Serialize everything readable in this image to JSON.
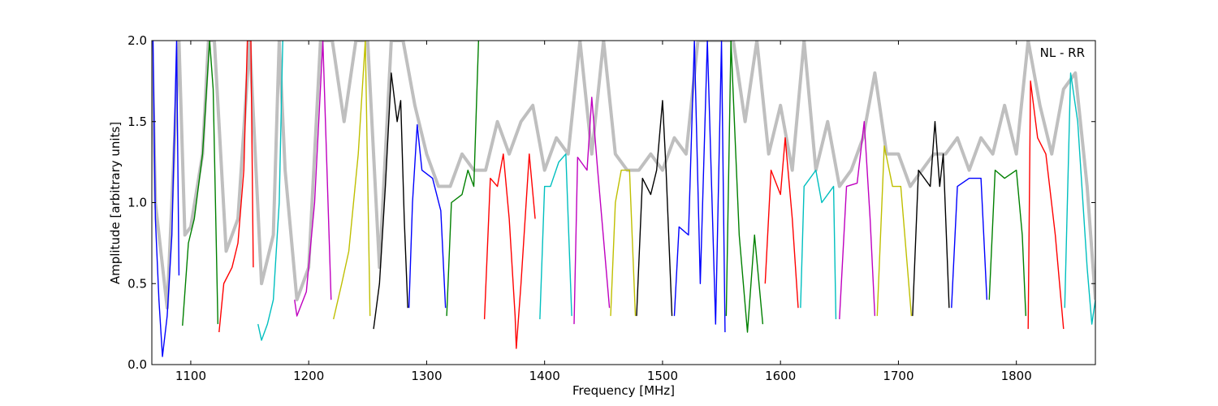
{
  "chart_data": {
    "type": "line",
    "annotation": "NL - RR",
    "x_label": "Frequency [MHz]",
    "y_label": "Amplitude [arbitrary units]",
    "xlim": [
      1067,
      1867
    ],
    "xticks": [
      1100,
      1200,
      1300,
      1400,
      1500,
      1600,
      1700,
      1800
    ],
    "ylim": [
      0,
      2
    ],
    "yticks": [
      {
        "value": 0,
        "label": "0.0"
      },
      {
        "value": 0.5,
        "label": "0.5"
      },
      {
        "value": 1,
        "label": "1.0"
      },
      {
        "value": 1.5,
        "label": "1.5"
      },
      {
        "value": 2,
        "label": "2.0"
      }
    ],
    "grid": false,
    "series": [
      {
        "color": "#bfbfbf",
        "x": [
          1067,
          1070,
          1080,
          1090,
          1095,
          1100,
          1110,
          1115,
          1120,
          1130,
          1140,
          1150,
          1160,
          1170,
          1175,
          1180,
          1190,
          1200,
          1210,
          1220,
          1230,
          1240,
          1250,
          1260,
          1270,
          1275,
          1280,
          1290,
          1300,
          1310,
          1320,
          1330,
          1340,
          1350,
          1360,
          1370,
          1380,
          1390,
          1400,
          1410,
          1420,
          1430,
          1440,
          1450,
          1460,
          1470,
          1480,
          1490,
          1500,
          1510,
          1520,
          1530,
          1540,
          1550,
          1560,
          1570,
          1580,
          1590,
          1600,
          1610,
          1620,
          1630,
          1640,
          1650,
          1660,
          1670,
          1680,
          1690,
          1700,
          1710,
          1720,
          1730,
          1740,
          1750,
          1760,
          1770,
          1780,
          1790,
          1800,
          1810,
          1820,
          1830,
          1840,
          1850,
          1860,
          1867
        ],
        "values": [
          2.0,
          1.0,
          0.35,
          2.0,
          0.8,
          0.85,
          1.3,
          2.0,
          2.0,
          0.7,
          0.9,
          2.0,
          0.5,
          0.8,
          2.0,
          1.2,
          0.4,
          0.6,
          2.0,
          2.0,
          1.5,
          2.0,
          2.0,
          0.6,
          2.0,
          2.0,
          2.0,
          1.6,
          1.3,
          1.1,
          1.1,
          1.3,
          1.2,
          1.2,
          1.5,
          1.3,
          1.5,
          1.6,
          1.2,
          1.4,
          1.3,
          2.0,
          1.3,
          2.0,
          1.3,
          1.2,
          1.2,
          1.3,
          1.2,
          1.4,
          1.3,
          2.0,
          2.0,
          2.0,
          2.0,
          1.5,
          2.0,
          1.3,
          1.6,
          1.2,
          2.0,
          1.2,
          1.5,
          1.1,
          1.2,
          1.4,
          1.8,
          1.3,
          1.3,
          1.1,
          1.2,
          1.3,
          1.3,
          1.4,
          1.2,
          1.4,
          1.3,
          1.6,
          1.3,
          2.0,
          1.6,
          1.3,
          1.7,
          1.8,
          1.1,
          0.4
        ]
      },
      {
        "color": "#0000ff",
        "x": [
          1068,
          1070,
          1073,
          1076,
          1080,
          1084,
          1088,
          1090
        ],
        "values": [
          2.0,
          0.9,
          0.4,
          0.05,
          0.3,
          0.8,
          2.0,
          0.55
        ]
      },
      {
        "color": "#008000",
        "x": [
          1093,
          1098,
          1103,
          1110,
          1116,
          1119,
          1123
        ],
        "values": [
          0.24,
          0.75,
          0.9,
          1.3,
          2.0,
          1.7,
          0.25
        ]
      },
      {
        "color": "#ff0000",
        "x": [
          1124,
          1128,
          1135,
          1140,
          1145,
          1148,
          1151,
          1153
        ],
        "values": [
          0.2,
          0.5,
          0.6,
          0.75,
          1.2,
          2.0,
          2.0,
          0.6
        ]
      },
      {
        "color": "#00bfbf",
        "x": [
          1157,
          1160,
          1165,
          1170,
          1175,
          1178
        ],
        "values": [
          0.25,
          0.15,
          0.25,
          0.4,
          1.0,
          2.0
        ]
      },
      {
        "color": "#bf00bf",
        "x": [
          1188,
          1190,
          1198,
          1205,
          1212,
          1219
        ],
        "values": [
          0.4,
          0.3,
          0.45,
          1.0,
          2.0,
          0.4
        ]
      },
      {
        "color": "#bfbf00",
        "x": [
          1221,
          1228,
          1234,
          1242,
          1248,
          1252
        ],
        "values": [
          0.28,
          0.5,
          0.7,
          1.3,
          2.0,
          0.3
        ]
      },
      {
        "color": "#000000",
        "x": [
          1255,
          1260,
          1265,
          1270,
          1275,
          1278,
          1281,
          1284
        ],
        "values": [
          0.22,
          0.5,
          1.1,
          1.8,
          1.5,
          1.63,
          0.9,
          0.35
        ]
      },
      {
        "color": "#0000ff",
        "x": [
          1285,
          1288,
          1292,
          1296,
          1305,
          1312,
          1316
        ],
        "values": [
          0.35,
          1.0,
          1.48,
          1.2,
          1.15,
          0.95,
          0.35
        ]
      },
      {
        "color": "#008000",
        "x": [
          1317,
          1321,
          1330,
          1335,
          1340,
          1344
        ],
        "values": [
          0.3,
          1.0,
          1.05,
          1.2,
          1.1,
          2.0
        ]
      },
      {
        "color": "#ff0000",
        "x": [
          1349,
          1354,
          1360,
          1365,
          1370,
          1375,
          1376,
          1380,
          1387,
          1392
        ],
        "values": [
          0.28,
          1.15,
          1.1,
          1.3,
          0.9,
          0.3,
          0.1,
          0.5,
          1.3,
          0.9
        ]
      },
      {
        "color": "#00bfbf",
        "x": [
          1396,
          1400,
          1405,
          1412,
          1418,
          1423
        ],
        "values": [
          0.28,
          1.1,
          1.1,
          1.25,
          1.3,
          0.3
        ]
      },
      {
        "color": "#bf00bf",
        "x": [
          1425,
          1428,
          1436,
          1440,
          1445,
          1455
        ],
        "values": [
          0.25,
          1.28,
          1.2,
          1.65,
          1.2,
          0.35
        ]
      },
      {
        "color": "#bfbf00",
        "x": [
          1456,
          1460,
          1465,
          1472,
          1477
        ],
        "values": [
          0.3,
          1.0,
          1.2,
          1.2,
          0.3
        ]
      },
      {
        "color": "#000000",
        "x": [
          1478,
          1483,
          1490,
          1495,
          1500,
          1503,
          1508
        ],
        "values": [
          0.3,
          1.15,
          1.05,
          1.2,
          1.63,
          1.2,
          0.3
        ]
      },
      {
        "color": "#0000ff",
        "x": [
          1510,
          1514,
          1522,
          1527,
          1532,
          1538,
          1545,
          1550,
          1553
        ],
        "values": [
          0.3,
          0.85,
          0.8,
          2.0,
          0.5,
          2.0,
          0.25,
          2.0,
          0.2
        ]
      },
      {
        "color": "#008000",
        "x": [
          1554,
          1558,
          1565,
          1572,
          1578,
          1585
        ],
        "values": [
          0.3,
          2.0,
          0.8,
          0.2,
          0.8,
          0.25
        ]
      },
      {
        "color": "#ff0000",
        "x": [
          1587,
          1592,
          1600,
          1604,
          1610,
          1615
        ],
        "values": [
          0.5,
          1.2,
          1.05,
          1.4,
          0.9,
          0.35
        ]
      },
      {
        "color": "#00bfbf",
        "x": [
          1617,
          1620,
          1630,
          1635,
          1645,
          1647
        ],
        "values": [
          0.35,
          1.1,
          1.2,
          1.0,
          1.1,
          0.28
        ]
      },
      {
        "color": "#bf00bf",
        "x": [
          1650,
          1656,
          1665,
          1671,
          1676,
          1680
        ],
        "values": [
          0.28,
          1.1,
          1.12,
          1.5,
          0.9,
          0.3
        ]
      },
      {
        "color": "#bfbf00",
        "x": [
          1682,
          1688,
          1695,
          1702,
          1711
        ],
        "values": [
          0.3,
          1.35,
          1.1,
          1.1,
          0.3
        ]
      },
      {
        "color": "#000000",
        "x": [
          1712,
          1717,
          1727,
          1731,
          1735,
          1738,
          1743
        ],
        "values": [
          0.3,
          1.2,
          1.1,
          1.5,
          1.1,
          1.3,
          0.35
        ]
      },
      {
        "color": "#0000ff",
        "x": [
          1745,
          1750,
          1760,
          1770,
          1775
        ],
        "values": [
          0.35,
          1.1,
          1.15,
          1.15,
          0.4
        ]
      },
      {
        "color": "#008000",
        "x": [
          1777,
          1782,
          1790,
          1800,
          1805,
          1808
        ],
        "values": [
          0.4,
          1.2,
          1.15,
          1.2,
          0.8,
          0.3
        ]
      },
      {
        "color": "#ff0000",
        "x": [
          1810,
          1812,
          1818,
          1825,
          1833,
          1840
        ],
        "values": [
          0.22,
          1.75,
          1.4,
          1.3,
          0.8,
          0.22
        ]
      },
      {
        "color": "#00bfbf",
        "x": [
          1841,
          1846,
          1852,
          1860,
          1864,
          1867
        ],
        "values": [
          0.35,
          1.8,
          1.5,
          0.6,
          0.25,
          0.4
        ]
      }
    ]
  }
}
